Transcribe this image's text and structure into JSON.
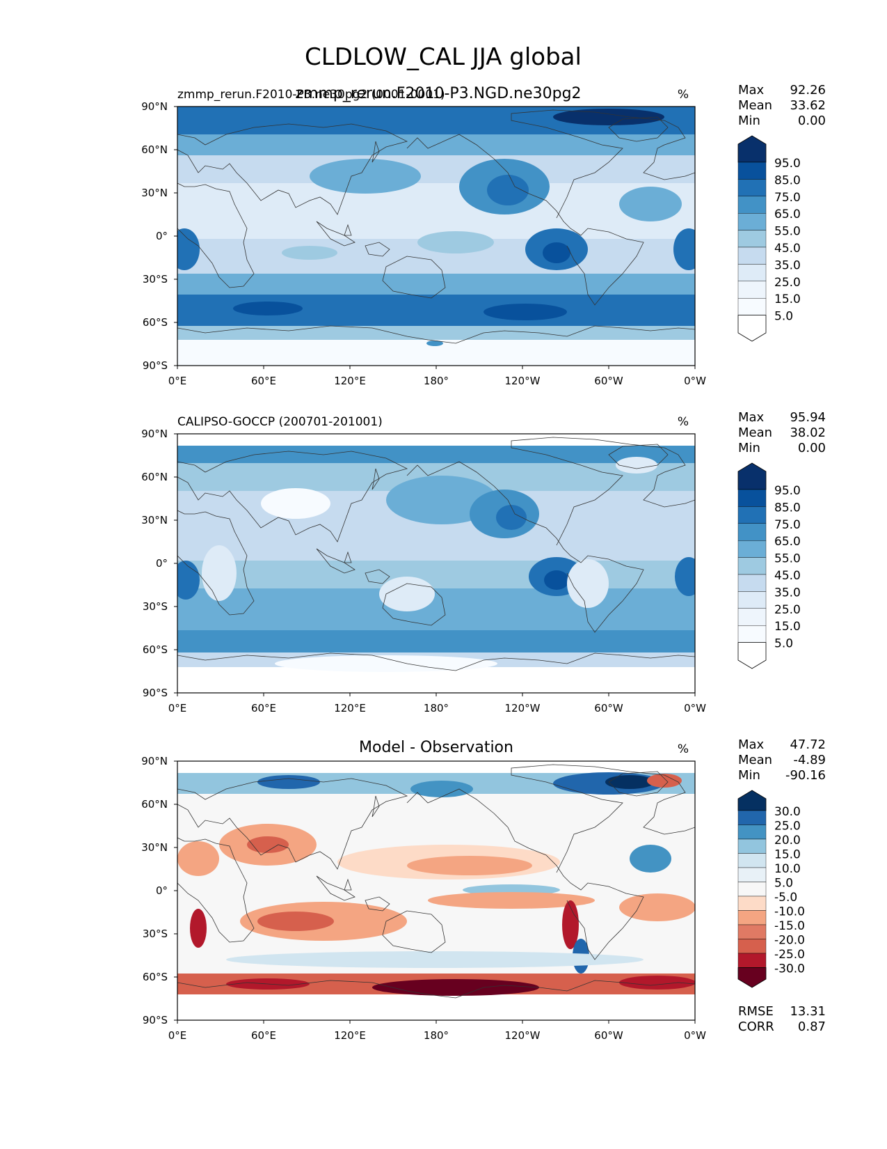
{
  "figure": {
    "title": "CLDLOW_CAL JJA global",
    "palette": {
      "seq": [
        "#f7fbff",
        "#deebf7",
        "#c6dbef",
        "#9ecae1",
        "#6baed6",
        "#4292c6",
        "#2171b5",
        "#08519c",
        "#08306b"
      ],
      "div": [
        "#67001f",
        "#b2182b",
        "#d6604d",
        "#f4a582",
        "#fddbc7",
        "#f7f7f7",
        "#d1e5f0",
        "#92c5de",
        "#4393c3",
        "#2166ac",
        "#053061"
      ]
    }
  },
  "axes": {
    "lat_ticks": [
      "90°N",
      "60°N",
      "30°N",
      "0°",
      "30°S",
      "60°S",
      "90°S"
    ],
    "lon_ticks": [
      "0°E",
      "60°E",
      "120°E",
      "180°",
      "120°W",
      "60°W",
      "0°W"
    ]
  },
  "panels": [
    {
      "left_title": "zmmp_rerun.F2010-P3.ne30pg2 (0001-0001)",
      "overlay_title": "zmmp_rerun.F2010-P3.NGD.ne30pg2",
      "units": "%",
      "stats": [
        {
          "label": "Max",
          "value": "92.26"
        },
        {
          "label": "Mean",
          "value": "33.62"
        },
        {
          "label": "Min",
          "value": "0.00"
        }
      ],
      "colorbar": [
        "95.0",
        "85.0",
        "75.0",
        "65.0",
        "55.0",
        "45.0",
        "35.0",
        "25.0",
        "15.0",
        "5.0"
      ]
    },
    {
      "left_title": "CALIPSO-GOCCP (200701-201001)",
      "units": "%",
      "stats": [
        {
          "label": "Max",
          "value": "95.94"
        },
        {
          "label": "Mean",
          "value": "38.02"
        },
        {
          "label": "Min",
          "value": "0.00"
        }
      ],
      "colorbar": [
        "95.0",
        "85.0",
        "75.0",
        "65.0",
        "55.0",
        "45.0",
        "35.0",
        "25.0",
        "15.0",
        "5.0"
      ]
    },
    {
      "center_title": "Model - Observation",
      "units": "%",
      "stats": [
        {
          "label": "Max",
          "value": "47.72"
        },
        {
          "label": "Mean",
          "value": "-4.89"
        },
        {
          "label": "Min",
          "value": "-90.16"
        }
      ],
      "colorbar": [
        "30.0",
        "25.0",
        "20.0",
        "15.0",
        "10.0",
        "5.0",
        "-5.0",
        "-10.0",
        "-15.0",
        "-20.0",
        "-25.0",
        "-30.0"
      ],
      "extra_stats": [
        {
          "label": "RMSE",
          "value": "13.31"
        },
        {
          "label": "CORR",
          "value": "0.87"
        }
      ]
    }
  ]
}
